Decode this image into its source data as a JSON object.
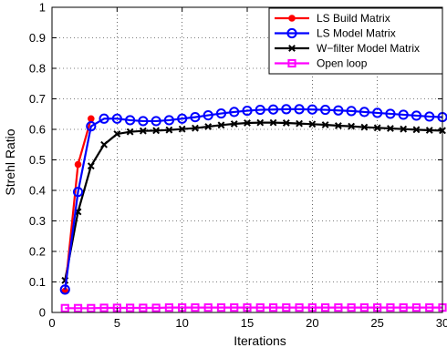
{
  "chart_data": {
    "type": "line",
    "title": "",
    "xlabel": "Iterations",
    "ylabel": "Strehl Ratio",
    "xlim": [
      0,
      30
    ],
    "ylim": [
      0,
      1
    ],
    "xticks": [
      0,
      5,
      10,
      15,
      20,
      25,
      30
    ],
    "yticks": [
      0,
      0.1,
      0.2,
      0.3,
      0.4,
      0.5,
      0.6,
      0.7,
      0.8,
      0.9,
      1
    ],
    "xtick_labels": [
      "0",
      "5",
      "10",
      "15",
      "20",
      "25",
      "30"
    ],
    "ytick_labels": [
      "0",
      "0.1",
      "0.2",
      "0.3",
      "0.4",
      "0.5",
      "0.6",
      "0.7",
      "0.8",
      "0.9",
      "1"
    ],
    "grid": true,
    "legend_position": "top-right",
    "series": [
      {
        "name": "LS Build Matrix",
        "color": "#ff0000",
        "marker": "dot",
        "x": [
          1,
          2,
          3
        ],
        "y": [
          0.07,
          0.485,
          0.635
        ]
      },
      {
        "name": "LS Model Matrix",
        "color": "#0000ff",
        "marker": "circle",
        "x": [
          1,
          2,
          3,
          4,
          5,
          6,
          7,
          8,
          9,
          10,
          11,
          12,
          13,
          14,
          15,
          16,
          17,
          18,
          19,
          20,
          21,
          22,
          23,
          24,
          25,
          26,
          27,
          28,
          29,
          30
        ],
        "y": [
          0.075,
          0.395,
          0.61,
          0.635,
          0.635,
          0.63,
          0.627,
          0.627,
          0.63,
          0.635,
          0.64,
          0.646,
          0.652,
          0.657,
          0.661,
          0.664,
          0.665,
          0.666,
          0.666,
          0.665,
          0.664,
          0.662,
          0.66,
          0.657,
          0.654,
          0.651,
          0.648,
          0.645,
          0.642,
          0.64
        ]
      },
      {
        "name": "W−filter Model Matrix",
        "color": "#000000",
        "marker": "x",
        "x": [
          1,
          2,
          3,
          4,
          5,
          6,
          7,
          8,
          9,
          10,
          11,
          12,
          13,
          14,
          15,
          16,
          17,
          18,
          19,
          20,
          21,
          22,
          23,
          24,
          25,
          26,
          27,
          28,
          29,
          30
        ],
        "y": [
          0.105,
          0.33,
          0.48,
          0.55,
          0.585,
          0.592,
          0.595,
          0.596,
          0.598,
          0.601,
          0.604,
          0.609,
          0.614,
          0.618,
          0.621,
          0.622,
          0.622,
          0.621,
          0.619,
          0.617,
          0.615,
          0.612,
          0.61,
          0.607,
          0.605,
          0.603,
          0.601,
          0.599,
          0.597,
          0.596
        ]
      },
      {
        "name": "Open loop",
        "color": "#ff00ff",
        "marker": "square",
        "x": [
          1,
          2,
          3,
          4,
          5,
          6,
          7,
          8,
          9,
          10,
          11,
          12,
          13,
          14,
          15,
          16,
          17,
          18,
          19,
          20,
          21,
          22,
          23,
          24,
          25,
          26,
          27,
          28,
          29,
          30
        ],
        "y": [
          0.014,
          0.014,
          0.014,
          0.015,
          0.015,
          0.015,
          0.015,
          0.015,
          0.016,
          0.016,
          0.016,
          0.016,
          0.016,
          0.016,
          0.016,
          0.016,
          0.016,
          0.016,
          0.016,
          0.016,
          0.016,
          0.016,
          0.016,
          0.016,
          0.016,
          0.016,
          0.016,
          0.016,
          0.016,
          0.016
        ]
      }
    ]
  }
}
